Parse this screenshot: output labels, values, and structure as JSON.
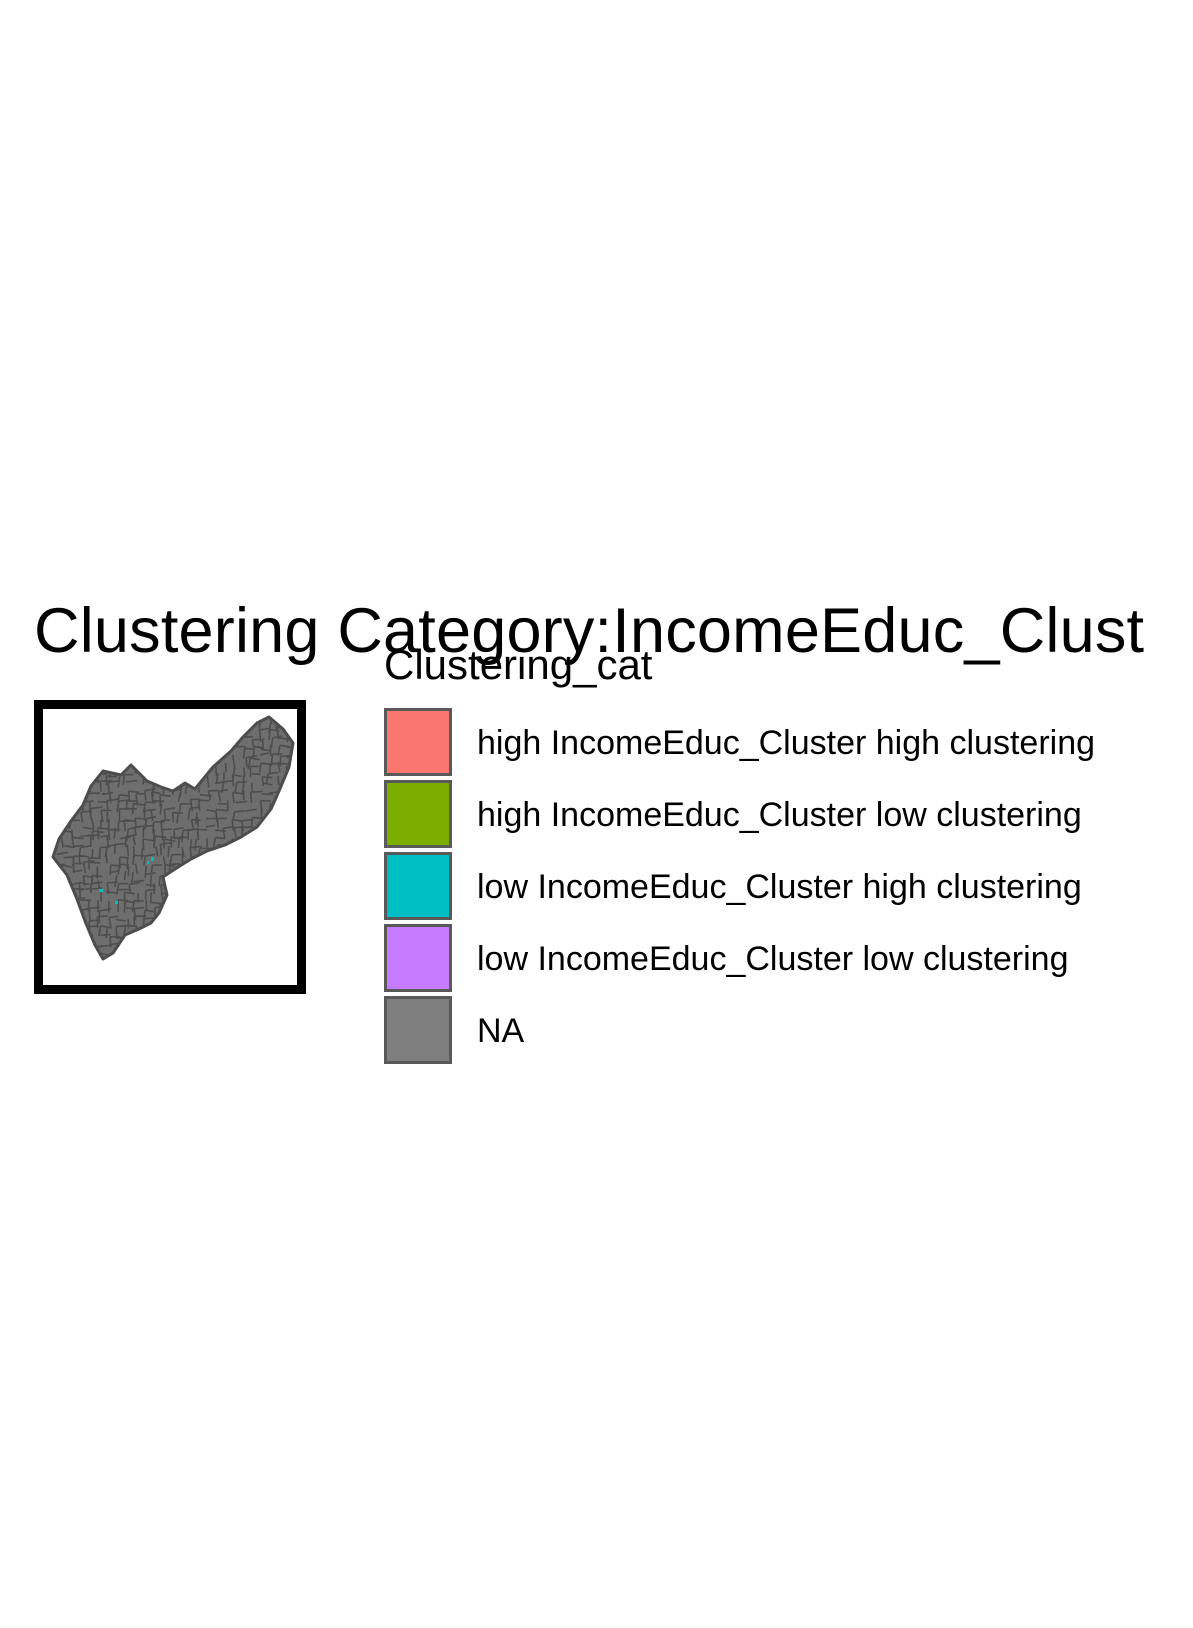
{
  "title": "Clustering Category:IncomeEduc_Clust",
  "legend": {
    "title": "Clustering_cat",
    "items": [
      {
        "label": "high IncomeEduc_Cluster high clustering",
        "color": "#F8766D"
      },
      {
        "label": "high IncomeEduc_Cluster low clustering",
        "color": "#7CAE00"
      },
      {
        "label": "low IncomeEduc_Cluster high clustering",
        "color": "#00BFC4"
      },
      {
        "label": "low IncomeEduc_Cluster low clustering",
        "color": "#C77CFF"
      },
      {
        "label": "NA",
        "color": "#7F7F7F"
      }
    ]
  },
  "map": {
    "region_fill": "#6E6E6E",
    "tract_stroke": "#4D4D4D",
    "frame_color": "#000000",
    "highlight_color": "#00BFC4"
  }
}
